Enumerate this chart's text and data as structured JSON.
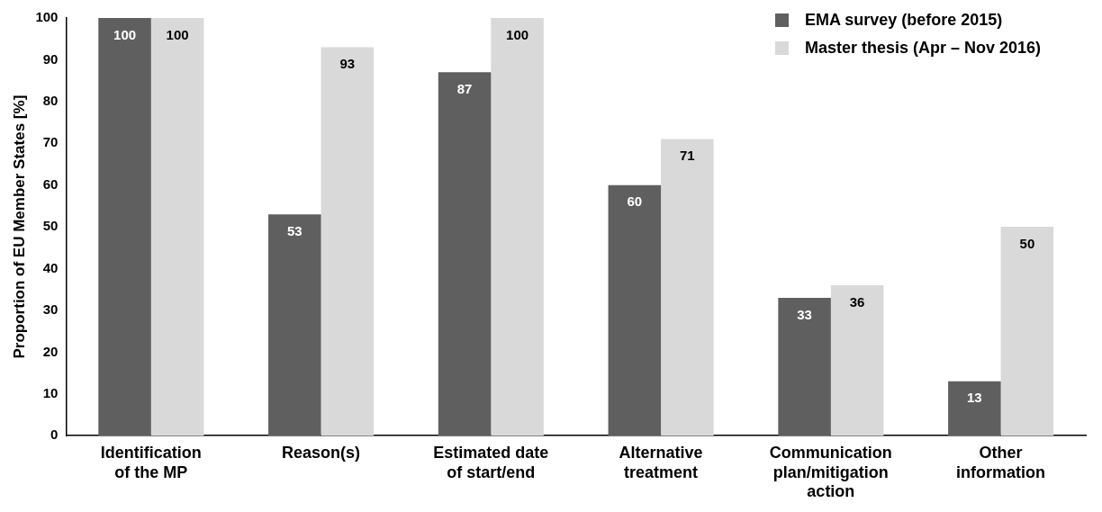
{
  "chart_data": {
    "type": "bar",
    "ylabel": "Proportion of EU Member States [%]",
    "categories": [
      "Identification of the MP",
      "Reason(s)",
      "Estimated date of start/end",
      "Alternative treatment",
      "Communication plan/mitigation action",
      "Other information"
    ],
    "series": [
      {
        "name": "EMA survey (before 2015)",
        "color": "#5f5f5f",
        "values": [
          100,
          53,
          87,
          60,
          33,
          13
        ]
      },
      {
        "name": "Master thesis (Apr – Nov 2016)",
        "color": "#d9d9d9",
        "values": [
          100,
          93,
          100,
          71,
          36,
          50
        ]
      }
    ],
    "ylim": [
      0,
      100
    ],
    "yticks": [
      0,
      10,
      20,
      30,
      40,
      50,
      60,
      70,
      80,
      90,
      100
    ],
    "grid": false,
    "legend": "top right",
    "data_labels": true
  }
}
